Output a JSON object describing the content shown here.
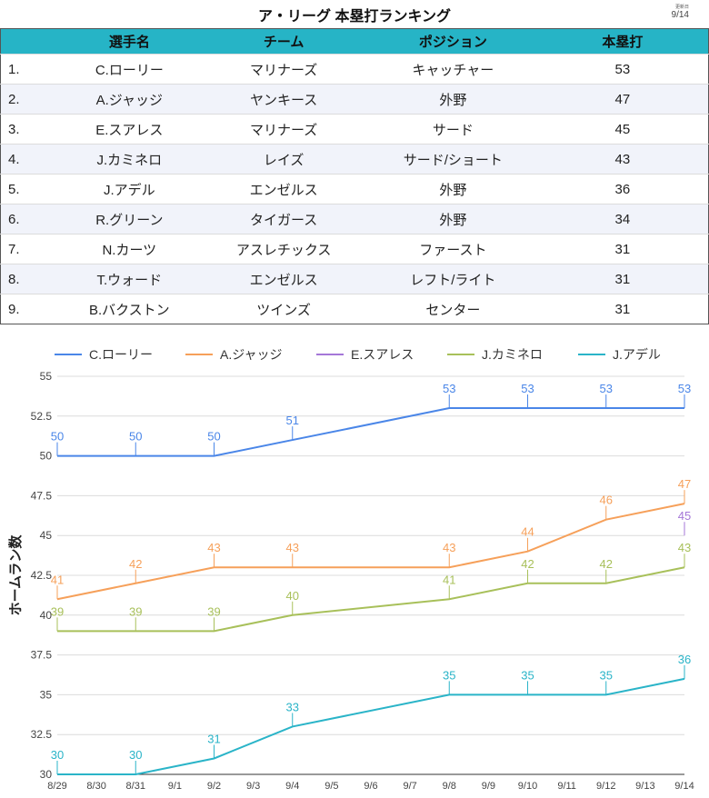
{
  "page": {
    "title": "ア・リーグ 本塁打ランキング",
    "updated_label": "更新日",
    "updated_date": "9/14"
  },
  "table": {
    "headers": [
      "",
      "選手名",
      "チーム",
      "ポジション",
      "本塁打"
    ],
    "rows": [
      {
        "rank": "1.",
        "player": "C.ローリー",
        "team": "マリナーズ",
        "position": "キャッチャー",
        "hr": "53"
      },
      {
        "rank": "2.",
        "player": "A.ジャッジ",
        "team": "ヤンキース",
        "position": "外野",
        "hr": "47"
      },
      {
        "rank": "3.",
        "player": "E.スアレス",
        "team": "マリナーズ",
        "position": "サード",
        "hr": "45"
      },
      {
        "rank": "4.",
        "player": "J.カミネロ",
        "team": "レイズ",
        "position": "サード/ショート",
        "hr": "43"
      },
      {
        "rank": "5.",
        "player": "J.アデル",
        "team": "エンゼルス",
        "position": "外野",
        "hr": "36"
      },
      {
        "rank": "6.",
        "player": "R.グリーン",
        "team": "タイガース",
        "position": "外野",
        "hr": "34"
      },
      {
        "rank": "7.",
        "player": "N.カーツ",
        "team": "アスレチックス",
        "position": "ファースト",
        "hr": "31"
      },
      {
        "rank": "8.",
        "player": "T.ウォード",
        "team": "エンゼルス",
        "position": "レフト/ライト",
        "hr": "31"
      },
      {
        "rank": "9.",
        "player": "B.バクストン",
        "team": "ツインズ",
        "position": "センター",
        "hr": "31"
      }
    ]
  },
  "chart_data": {
    "type": "line",
    "ylabel": "ホームラン数",
    "ylim": [
      30,
      55
    ],
    "yticks": [
      "30",
      "32.5",
      "35",
      "37.5",
      "40",
      "42.5",
      "45",
      "47.5",
      "50",
      "52.5",
      "55"
    ],
    "x": [
      "8/29",
      "8/30",
      "8/31",
      "9/1",
      "9/2",
      "9/3",
      "9/4",
      "9/5",
      "9/6",
      "9/7",
      "9/8",
      "9/9",
      "9/10",
      "9/11",
      "9/12",
      "9/13",
      "9/14"
    ],
    "legend_position": "top",
    "grid": true,
    "series": [
      {
        "name": "C.ローリー",
        "color": "#4a86e8",
        "points": [
          [
            "8/29",
            50
          ],
          [
            "8/31",
            50
          ],
          [
            "9/2",
            50
          ],
          [
            "9/4",
            51
          ],
          [
            "9/8",
            53
          ],
          [
            "9/10",
            53
          ],
          [
            "9/12",
            53
          ],
          [
            "9/14",
            53
          ]
        ]
      },
      {
        "name": "A.ジャッジ",
        "color": "#f6a05a",
        "points": [
          [
            "8/29",
            41
          ],
          [
            "8/31",
            42
          ],
          [
            "9/2",
            43
          ],
          [
            "9/4",
            43
          ],
          [
            "9/8",
            43
          ],
          [
            "9/10",
            44
          ],
          [
            "9/12",
            46
          ],
          [
            "9/14",
            47
          ]
        ]
      },
      {
        "name": "E.スアレス",
        "color": "#a577d8",
        "points": [
          [
            "9/14",
            45
          ]
        ]
      },
      {
        "name": "J.カミネロ",
        "color": "#a8c05a",
        "points": [
          [
            "8/29",
            39
          ],
          [
            "8/31",
            39
          ],
          [
            "9/2",
            39
          ],
          [
            "9/4",
            40
          ],
          [
            "9/8",
            41
          ],
          [
            "9/10",
            42
          ],
          [
            "9/12",
            42
          ],
          [
            "9/14",
            43
          ]
        ]
      },
      {
        "name": "J.アデル",
        "color": "#2ab4c8",
        "points": [
          [
            "8/29",
            30
          ],
          [
            "8/31",
            30
          ],
          [
            "9/2",
            31
          ],
          [
            "9/4",
            33
          ],
          [
            "9/8",
            35
          ],
          [
            "9/10",
            35
          ],
          [
            "9/12",
            35
          ],
          [
            "9/14",
            36
          ]
        ]
      }
    ]
  }
}
